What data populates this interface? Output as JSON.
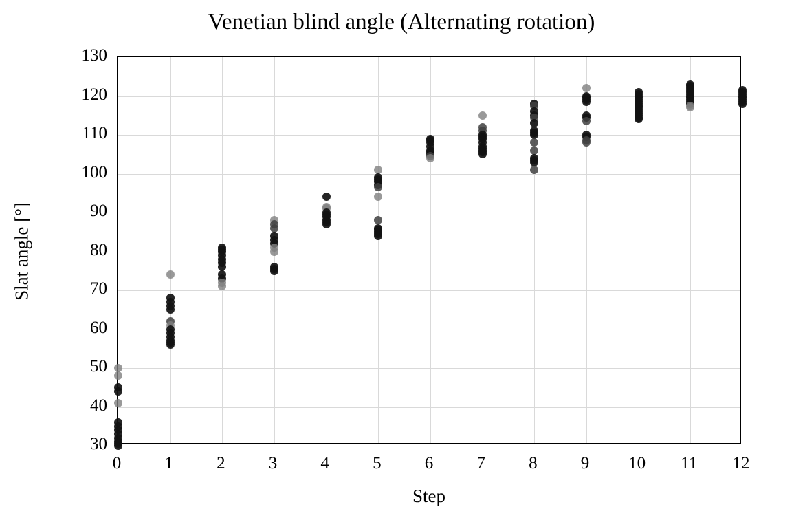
{
  "chart_data": {
    "type": "scatter",
    "title": "Venetian blind angle (Alternating rotation)",
    "xlabel": "Step",
    "ylabel": "Slat angle [°]",
    "xlim": [
      0,
      12
    ],
    "ylim": [
      30,
      130
    ],
    "xticks": [
      0,
      1,
      2,
      3,
      4,
      5,
      6,
      7,
      8,
      9,
      10,
      11,
      12
    ],
    "yticks": [
      30,
      40,
      50,
      60,
      70,
      80,
      90,
      100,
      110,
      120,
      130
    ],
    "grid": true,
    "legend": "none",
    "gridline_color": "#d9d9d9",
    "axis_color": "#000000",
    "point_colors": {
      "d": "rgba(18,18,18,0.92)",
      "m": "rgba(64,64,64,0.85)",
      "l": "rgba(128,128,128,0.80)"
    },
    "points": [
      [
        0,
        50,
        "l"
      ],
      [
        0,
        48,
        "l"
      ],
      [
        0,
        45,
        "d"
      ],
      [
        0,
        44,
        "d"
      ],
      [
        0,
        41,
        "l"
      ],
      [
        0,
        36,
        "d"
      ],
      [
        0,
        35,
        "d"
      ],
      [
        0,
        34,
        "d"
      ],
      [
        0,
        33,
        "d"
      ],
      [
        0,
        32,
        "d"
      ],
      [
        0,
        31,
        "d"
      ],
      [
        0,
        30.5,
        "d"
      ],
      [
        0,
        30,
        "d"
      ],
      [
        1,
        74,
        "l"
      ],
      [
        1,
        68,
        "d"
      ],
      [
        1,
        67,
        "d"
      ],
      [
        1,
        66,
        "d"
      ],
      [
        1,
        65,
        "d"
      ],
      [
        1,
        62,
        "m"
      ],
      [
        1,
        61,
        "l"
      ],
      [
        1,
        60,
        "d"
      ],
      [
        1,
        59,
        "d"
      ],
      [
        1,
        58,
        "d"
      ],
      [
        1,
        57,
        "d"
      ],
      [
        1,
        56.5,
        "d"
      ],
      [
        1,
        56,
        "d"
      ],
      [
        2,
        81,
        "d"
      ],
      [
        2,
        80.5,
        "d"
      ],
      [
        2,
        80,
        "d"
      ],
      [
        2,
        79,
        "d"
      ],
      [
        2,
        78,
        "d"
      ],
      [
        2,
        77,
        "d"
      ],
      [
        2,
        76,
        "d"
      ],
      [
        2,
        74,
        "d"
      ],
      [
        2,
        73,
        "d"
      ],
      [
        2,
        72,
        "l"
      ],
      [
        2,
        71,
        "l"
      ],
      [
        3,
        88,
        "l"
      ],
      [
        3,
        87,
        "m"
      ],
      [
        3,
        86,
        "m"
      ],
      [
        3,
        84,
        "d"
      ],
      [
        3,
        83,
        "d"
      ],
      [
        3,
        82,
        "d"
      ],
      [
        3,
        81,
        "l"
      ],
      [
        3,
        80,
        "l"
      ],
      [
        3,
        76,
        "d"
      ],
      [
        3,
        75.5,
        "d"
      ],
      [
        3,
        75,
        "d"
      ],
      [
        4,
        94,
        "d"
      ],
      [
        4,
        91.5,
        "l"
      ],
      [
        4,
        91,
        "l"
      ],
      [
        4,
        90,
        "d"
      ],
      [
        4,
        89.5,
        "d"
      ],
      [
        4,
        89,
        "d"
      ],
      [
        4,
        88,
        "d"
      ],
      [
        4,
        87.5,
        "d"
      ],
      [
        4,
        87,
        "d"
      ],
      [
        5,
        101,
        "l"
      ],
      [
        5,
        99,
        "d"
      ],
      [
        5,
        98.5,
        "d"
      ],
      [
        5,
        98,
        "d"
      ],
      [
        5,
        97,
        "d"
      ],
      [
        5,
        96.5,
        "m"
      ],
      [
        5,
        94,
        "l"
      ],
      [
        5,
        88,
        "m"
      ],
      [
        5,
        86,
        "d"
      ],
      [
        5,
        85.5,
        "d"
      ],
      [
        5,
        85,
        "d"
      ],
      [
        5,
        84.5,
        "d"
      ],
      [
        5,
        84,
        "d"
      ],
      [
        6,
        109,
        "d"
      ],
      [
        6,
        108.5,
        "d"
      ],
      [
        6,
        108,
        "d"
      ],
      [
        6,
        107,
        "d"
      ],
      [
        6,
        106,
        "d"
      ],
      [
        6,
        105.5,
        "d"
      ],
      [
        6,
        105,
        "d"
      ],
      [
        6,
        104.5,
        "m"
      ],
      [
        6,
        104,
        "l"
      ],
      [
        7,
        115,
        "l"
      ],
      [
        7,
        112,
        "m"
      ],
      [
        7,
        111,
        "m"
      ],
      [
        7,
        110,
        "d"
      ],
      [
        7,
        109.5,
        "d"
      ],
      [
        7,
        109,
        "d"
      ],
      [
        7,
        108,
        "d"
      ],
      [
        7,
        107,
        "d"
      ],
      [
        7,
        106.5,
        "d"
      ],
      [
        7,
        106,
        "d"
      ],
      [
        7,
        105.5,
        "d"
      ],
      [
        7,
        105,
        "d"
      ],
      [
        8,
        118,
        "d"
      ],
      [
        8,
        117.5,
        "m"
      ],
      [
        8,
        116,
        "d"
      ],
      [
        8,
        115,
        "d"
      ],
      [
        8,
        114.5,
        "m"
      ],
      [
        8,
        113,
        "d"
      ],
      [
        8,
        111,
        "d"
      ],
      [
        8,
        110.5,
        "d"
      ],
      [
        8,
        110,
        "d"
      ],
      [
        8,
        108,
        "m"
      ],
      [
        8,
        106,
        "m"
      ],
      [
        8,
        104,
        "d"
      ],
      [
        8,
        103.5,
        "d"
      ],
      [
        8,
        103,
        "d"
      ],
      [
        8,
        101,
        "m"
      ],
      [
        9,
        122,
        "l"
      ],
      [
        9,
        120,
        "d"
      ],
      [
        9,
        119.5,
        "d"
      ],
      [
        9,
        119,
        "d"
      ],
      [
        9,
        118.5,
        "d"
      ],
      [
        9,
        115,
        "d"
      ],
      [
        9,
        114.5,
        "d"
      ],
      [
        9,
        113.5,
        "m"
      ],
      [
        9,
        110,
        "d"
      ],
      [
        9,
        109.5,
        "d"
      ],
      [
        9,
        108.5,
        "m"
      ],
      [
        9,
        108,
        "m"
      ],
      [
        10,
        121,
        "d"
      ],
      [
        10,
        120.5,
        "d"
      ],
      [
        10,
        120,
        "d"
      ],
      [
        10,
        119.5,
        "d"
      ],
      [
        10,
        119,
        "d"
      ],
      [
        10,
        118.5,
        "d"
      ],
      [
        10,
        118,
        "d"
      ],
      [
        10,
        117.5,
        "d"
      ],
      [
        10,
        117,
        "d"
      ],
      [
        10,
        116.5,
        "d"
      ],
      [
        10,
        116,
        "d"
      ],
      [
        10,
        115.5,
        "d"
      ],
      [
        10,
        115,
        "d"
      ],
      [
        10,
        114.5,
        "d"
      ],
      [
        10,
        114,
        "d"
      ],
      [
        11,
        123,
        "d"
      ],
      [
        11,
        122.5,
        "d"
      ],
      [
        11,
        122,
        "d"
      ],
      [
        11,
        121.5,
        "d"
      ],
      [
        11,
        121,
        "d"
      ],
      [
        11,
        120.5,
        "d"
      ],
      [
        11,
        120,
        "d"
      ],
      [
        11,
        119.5,
        "d"
      ],
      [
        11,
        119,
        "d"
      ],
      [
        11,
        118.5,
        "d"
      ],
      [
        11,
        118,
        "d"
      ],
      [
        11,
        117.5,
        "l"
      ],
      [
        11,
        117,
        "l"
      ],
      [
        12,
        121.5,
        "d"
      ],
      [
        12,
        121,
        "d"
      ],
      [
        12,
        120.5,
        "d"
      ],
      [
        12,
        120,
        "d"
      ],
      [
        12,
        119.5,
        "d"
      ],
      [
        12,
        119,
        "d"
      ],
      [
        12,
        118.5,
        "d"
      ],
      [
        12,
        118,
        "d"
      ]
    ]
  }
}
